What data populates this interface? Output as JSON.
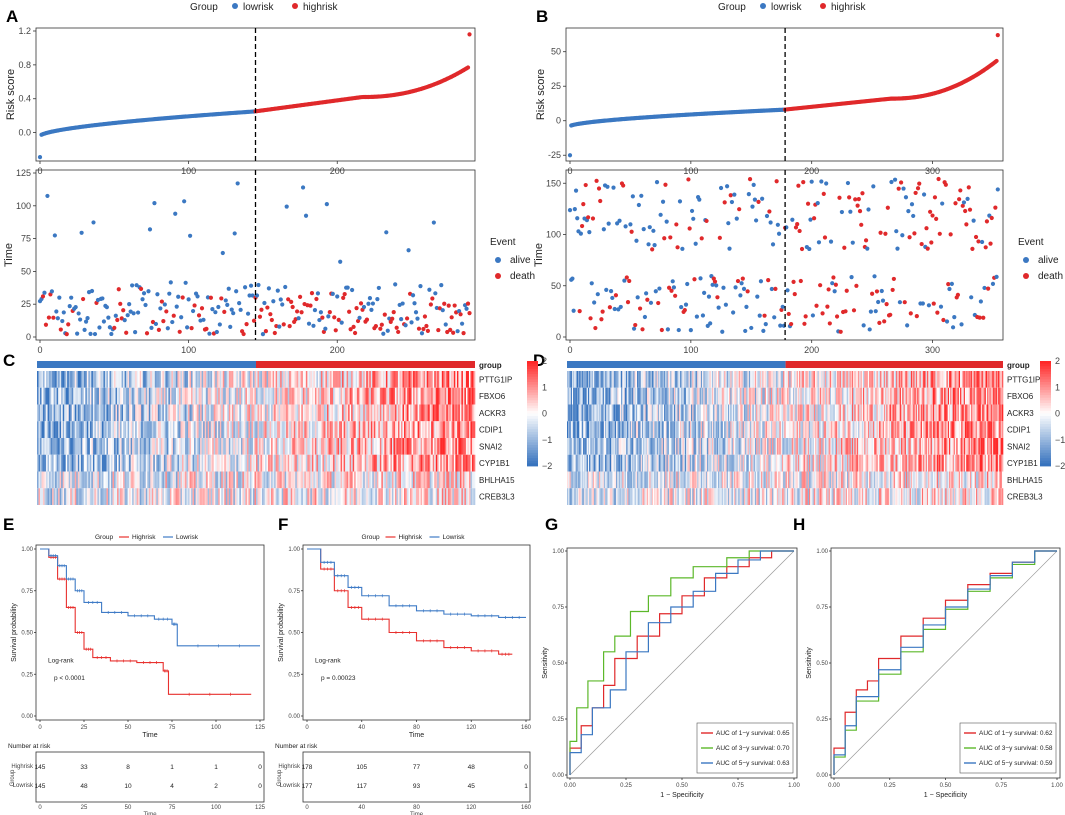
{
  "colors": {
    "low": "#3b78c2",
    "high": "#e0292b",
    "alive": "#3b78c2",
    "death": "#e0292b",
    "km_high": "#e8312f",
    "km_low": "#3f7bc6",
    "roc1": "#e0292b",
    "roc3": "#5cb82a",
    "roc5": "#3b78c2"
  },
  "panel_labels": [
    "A",
    "B",
    "C",
    "D",
    "E",
    "F",
    "G",
    "H"
  ],
  "legend": {
    "group_title": "Group",
    "lowrisk": "lowrisk",
    "highrisk": "highrisk",
    "event_title": "Event",
    "alive": "alive",
    "death": "death"
  },
  "heatmap_labels": {
    "group": "group",
    "genes": [
      "PTTG1IP",
      "FBXO6",
      "ACKR3",
      "CDIP1",
      "SNAI2",
      "CYP1B1",
      "BHLHA15",
      "CREB3L3"
    ],
    "scale": [
      "2",
      "1",
      "0",
      "−1",
      "−2"
    ]
  },
  "km_text": {
    "group_title": "Group",
    "high": "Highrisk",
    "low": "Lowrisk",
    "ylabel": "Survival probability",
    "xlabel": "Time",
    "logrank": "Log-rank",
    "risk_title": "Number at risk",
    "risk_ylabel": "Group",
    "risk_xlabel": "Time",
    "risk_row_high": "Highrisk",
    "risk_row_low": "Lowrisk"
  },
  "roc_text": {
    "ylabel": "Sensitivity",
    "xlabel": "1 − Specificity"
  },
  "chart_data": [
    {
      "panel": "A",
      "type": "scatter",
      "subtype": "risk_score",
      "n": 290,
      "cutoff": 145,
      "ylabel": "Risk score",
      "xlim": [
        0,
        290
      ],
      "ylim": [
        -0.3,
        1.2
      ],
      "xticks": [
        "0",
        "100",
        "200"
      ],
      "yticks": [
        "0.0",
        "0.4",
        "0.8",
        "1.2"
      ],
      "ytick_values": [
        0,
        0.4,
        0.8,
        1.2
      ],
      "xtick_values": [
        0,
        100,
        200
      ],
      "curve": {
        "min": -0.29,
        "start": -0.04,
        "mid": 0.25,
        "q3": 0.42,
        "pre_end": 0.78,
        "max": 1.16
      }
    },
    {
      "panel": "B",
      "type": "scatter",
      "subtype": "risk_score",
      "n": 355,
      "cutoff": 178,
      "ylabel": "Risk score",
      "xlim": [
        0,
        355
      ],
      "ylim": [
        -27,
        65
      ],
      "xticks": [
        "0",
        "100",
        "200",
        "300"
      ],
      "yticks": [
        "-25",
        "0",
        "25",
        "50"
      ],
      "ytick_values": [
        -25,
        0,
        25,
        50
      ],
      "xtick_values": [
        0,
        100,
        200,
        300
      ],
      "curve": {
        "min": -25,
        "start": -4,
        "mid": 8,
        "q3": 16,
        "pre_end": 44,
        "max": 62
      }
    },
    {
      "panel": "A",
      "type": "scatter",
      "subtype": "survival_time",
      "n": 290,
      "cutoff": 145,
      "ylabel": "Time",
      "xlim": [
        0,
        290
      ],
      "ylim": [
        0,
        125
      ],
      "xticks": [
        "0",
        "100",
        "200"
      ],
      "yticks": [
        "0",
        "25",
        "50",
        "75",
        "100",
        "125"
      ],
      "ytick_values": [
        0,
        25,
        50,
        75,
        100,
        125
      ],
      "xtick_values": [
        0,
        100,
        200
      ]
    },
    {
      "panel": "B",
      "type": "scatter",
      "subtype": "survival_time",
      "n": 355,
      "cutoff": 178,
      "ylabel": "Time",
      "xlim": [
        0,
        355
      ],
      "ylim": [
        0,
        160
      ],
      "xticks": [
        "0",
        "100",
        "200",
        "300"
      ],
      "yticks": [
        "0",
        "50",
        "100",
        "150"
      ],
      "ytick_values": [
        0,
        50,
        100,
        150
      ],
      "xtick_values": [
        0,
        100,
        200,
        300
      ]
    },
    {
      "panel": "C",
      "type": "heatmap",
      "n": 290,
      "cutoff": 145,
      "rows": [
        "PTTG1IP",
        "FBXO6",
        "ACKR3",
        "CDIP1",
        "SNAI2",
        "CYP1B1",
        "BHLHA15",
        "CREB3L3"
      ],
      "range": [
        -2,
        2
      ]
    },
    {
      "panel": "D",
      "type": "heatmap",
      "n": 355,
      "cutoff": 178,
      "rows": [
        "PTTG1IP",
        "FBXO6",
        "ACKR3",
        "CDIP1",
        "SNAI2",
        "CYP1B1",
        "BHLHA15",
        "CREB3L3"
      ],
      "range": [
        -2,
        2
      ]
    },
    {
      "panel": "E",
      "type": "line",
      "subtype": "kaplan_meier",
      "xlim": [
        0,
        125
      ],
      "ylim": [
        0,
        1
      ],
      "xticks": [
        "0",
        "25",
        "50",
        "75",
        "100",
        "125"
      ],
      "yticks": [
        "0.00",
        "0.25",
        "0.50",
        "0.75",
        "1.00"
      ],
      "pvalue": "p < 0.0001",
      "series": [
        {
          "name": "Highrisk",
          "points": [
            [
              0,
              1
            ],
            [
              5,
              0.95
            ],
            [
              10,
              0.82
            ],
            [
              15,
              0.65
            ],
            [
              20,
              0.5
            ],
            [
              25,
              0.4
            ],
            [
              30,
              0.35
            ],
            [
              40,
              0.33
            ],
            [
              55,
              0.32
            ],
            [
              70,
              0.27
            ],
            [
              73,
              0.13
            ],
            [
              120,
              0.13
            ]
          ]
        },
        {
          "name": "Lowrisk",
          "points": [
            [
              0,
              1
            ],
            [
              5,
              0.96
            ],
            [
              10,
              0.9
            ],
            [
              15,
              0.82
            ],
            [
              20,
              0.75
            ],
            [
              25,
              0.68
            ],
            [
              35,
              0.62
            ],
            [
              50,
              0.6
            ],
            [
              65,
              0.58
            ],
            [
              75,
              0.55
            ],
            [
              78,
              0.42
            ],
            [
              125,
              0.42
            ]
          ]
        }
      ],
      "risk_table": {
        "times": [
          "0",
          "25",
          "50",
          "75",
          "100",
          "125"
        ],
        "rows": [
          {
            "name": "Highrisk",
            "counts": [
              "145",
              "33",
              "8",
              "1",
              "1",
              "0"
            ]
          },
          {
            "name": "Lowrisk",
            "counts": [
              "145",
              "48",
              "10",
              "4",
              "2",
              "0"
            ]
          }
        ]
      }
    },
    {
      "panel": "F",
      "type": "line",
      "subtype": "kaplan_meier",
      "xlim": [
        0,
        160
      ],
      "ylim": [
        0,
        1
      ],
      "xticks": [
        "0",
        "40",
        "80",
        "120",
        "160"
      ],
      "yticks": [
        "0.00",
        "0.25",
        "0.50",
        "0.75",
        "1.00"
      ],
      "pvalue": "p = 0.00023",
      "series": [
        {
          "name": "Highrisk",
          "points": [
            [
              0,
              1
            ],
            [
              10,
              0.88
            ],
            [
              20,
              0.75
            ],
            [
              30,
              0.65
            ],
            [
              40,
              0.58
            ],
            [
              60,
              0.5
            ],
            [
              80,
              0.45
            ],
            [
              100,
              0.41
            ],
            [
              120,
              0.39
            ],
            [
              140,
              0.37
            ],
            [
              150,
              0.37
            ]
          ]
        },
        {
          "name": "Lowrisk",
          "points": [
            [
              0,
              1
            ],
            [
              10,
              0.92
            ],
            [
              20,
              0.84
            ],
            [
              30,
              0.77
            ],
            [
              40,
              0.72
            ],
            [
              60,
              0.66
            ],
            [
              80,
              0.63
            ],
            [
              100,
              0.61
            ],
            [
              120,
              0.6
            ],
            [
              140,
              0.59
            ],
            [
              160,
              0.59
            ]
          ]
        }
      ],
      "risk_table": {
        "times": [
          "0",
          "40",
          "80",
          "120",
          "160"
        ],
        "rows": [
          {
            "name": "Highrisk",
            "counts": [
              "178",
              "105",
              "77",
              "48",
              "0"
            ]
          },
          {
            "name": "Lowrisk",
            "counts": [
              "177",
              "117",
              "93",
              "45",
              "1"
            ]
          }
        ]
      }
    },
    {
      "panel": "G",
      "type": "line",
      "subtype": "roc",
      "xlim": [
        0,
        1
      ],
      "ylim": [
        0,
        1
      ],
      "xticks": [
        "0.00",
        "0.25",
        "0.50",
        "0.75",
        "1.00"
      ],
      "yticks": [
        "0.00",
        "0.25",
        "0.50",
        "0.75",
        "1.00"
      ],
      "series": [
        {
          "name": "AUC of 1−y survival: 0.65",
          "points": [
            [
              0,
              0
            ],
            [
              0.05,
              0.12
            ],
            [
              0.1,
              0.22
            ],
            [
              0.15,
              0.3
            ],
            [
              0.2,
              0.4
            ],
            [
              0.3,
              0.52
            ],
            [
              0.4,
              0.62
            ],
            [
              0.5,
              0.72
            ],
            [
              0.6,
              0.8
            ],
            [
              0.7,
              0.88
            ],
            [
              0.8,
              0.93
            ],
            [
              0.9,
              0.97
            ],
            [
              1,
              1
            ]
          ]
        },
        {
          "name": "AUC of 3−y survival: 0.70",
          "points": [
            [
              0,
              0
            ],
            [
              0.03,
              0.15
            ],
            [
              0.08,
              0.3
            ],
            [
              0.15,
              0.42
            ],
            [
              0.2,
              0.55
            ],
            [
              0.27,
              0.62
            ],
            [
              0.35,
              0.73
            ],
            [
              0.45,
              0.8
            ],
            [
              0.55,
              0.88
            ],
            [
              0.7,
              0.93
            ],
            [
              0.8,
              0.97
            ],
            [
              1,
              1
            ]
          ]
        },
        {
          "name": "AUC of 5−y survival: 0.63",
          "points": [
            [
              0,
              0
            ],
            [
              0.05,
              0.1
            ],
            [
              0.1,
              0.18
            ],
            [
              0.18,
              0.3
            ],
            [
              0.25,
              0.38
            ],
            [
              0.35,
              0.55
            ],
            [
              0.45,
              0.68
            ],
            [
              0.55,
              0.75
            ],
            [
              0.65,
              0.82
            ],
            [
              0.75,
              0.9
            ],
            [
              0.85,
              0.96
            ],
            [
              1,
              1
            ]
          ]
        }
      ]
    },
    {
      "panel": "H",
      "type": "line",
      "subtype": "roc",
      "xlim": [
        0,
        1
      ],
      "ylim": [
        0,
        1
      ],
      "xticks": [
        "0.00",
        "0.25",
        "0.50",
        "0.75",
        "1.00"
      ],
      "yticks": [
        "0.00",
        "0.25",
        "0.50",
        "0.75",
        "1.00"
      ],
      "series": [
        {
          "name": "AUC of 1−y survival: 0.62",
          "points": [
            [
              0,
              0
            ],
            [
              0.05,
              0.12
            ],
            [
              0.1,
              0.28
            ],
            [
              0.15,
              0.38
            ],
            [
              0.2,
              0.42
            ],
            [
              0.3,
              0.52
            ],
            [
              0.4,
              0.62
            ],
            [
              0.5,
              0.7
            ],
            [
              0.6,
              0.78
            ],
            [
              0.7,
              0.85
            ],
            [
              0.8,
              0.9
            ],
            [
              0.9,
              0.95
            ],
            [
              1,
              1
            ]
          ]
        },
        {
          "name": "AUC of 3−y survival: 0.58",
          "points": [
            [
              0,
              0
            ],
            [
              0.05,
              0.08
            ],
            [
              0.1,
              0.2
            ],
            [
              0.2,
              0.33
            ],
            [
              0.3,
              0.45
            ],
            [
              0.4,
              0.55
            ],
            [
              0.5,
              0.65
            ],
            [
              0.6,
              0.74
            ],
            [
              0.7,
              0.82
            ],
            [
              0.8,
              0.88
            ],
            [
              0.9,
              0.94
            ],
            [
              1,
              1
            ]
          ]
        },
        {
          "name": "AUC of 5−y survival: 0.59",
          "points": [
            [
              0,
              0
            ],
            [
              0.05,
              0.09
            ],
            [
              0.1,
              0.22
            ],
            [
              0.2,
              0.35
            ],
            [
              0.3,
              0.47
            ],
            [
              0.4,
              0.57
            ],
            [
              0.5,
              0.67
            ],
            [
              0.6,
              0.75
            ],
            [
              0.7,
              0.83
            ],
            [
              0.8,
              0.89
            ],
            [
              0.9,
              0.95
            ],
            [
              1,
              1
            ]
          ]
        }
      ]
    }
  ]
}
